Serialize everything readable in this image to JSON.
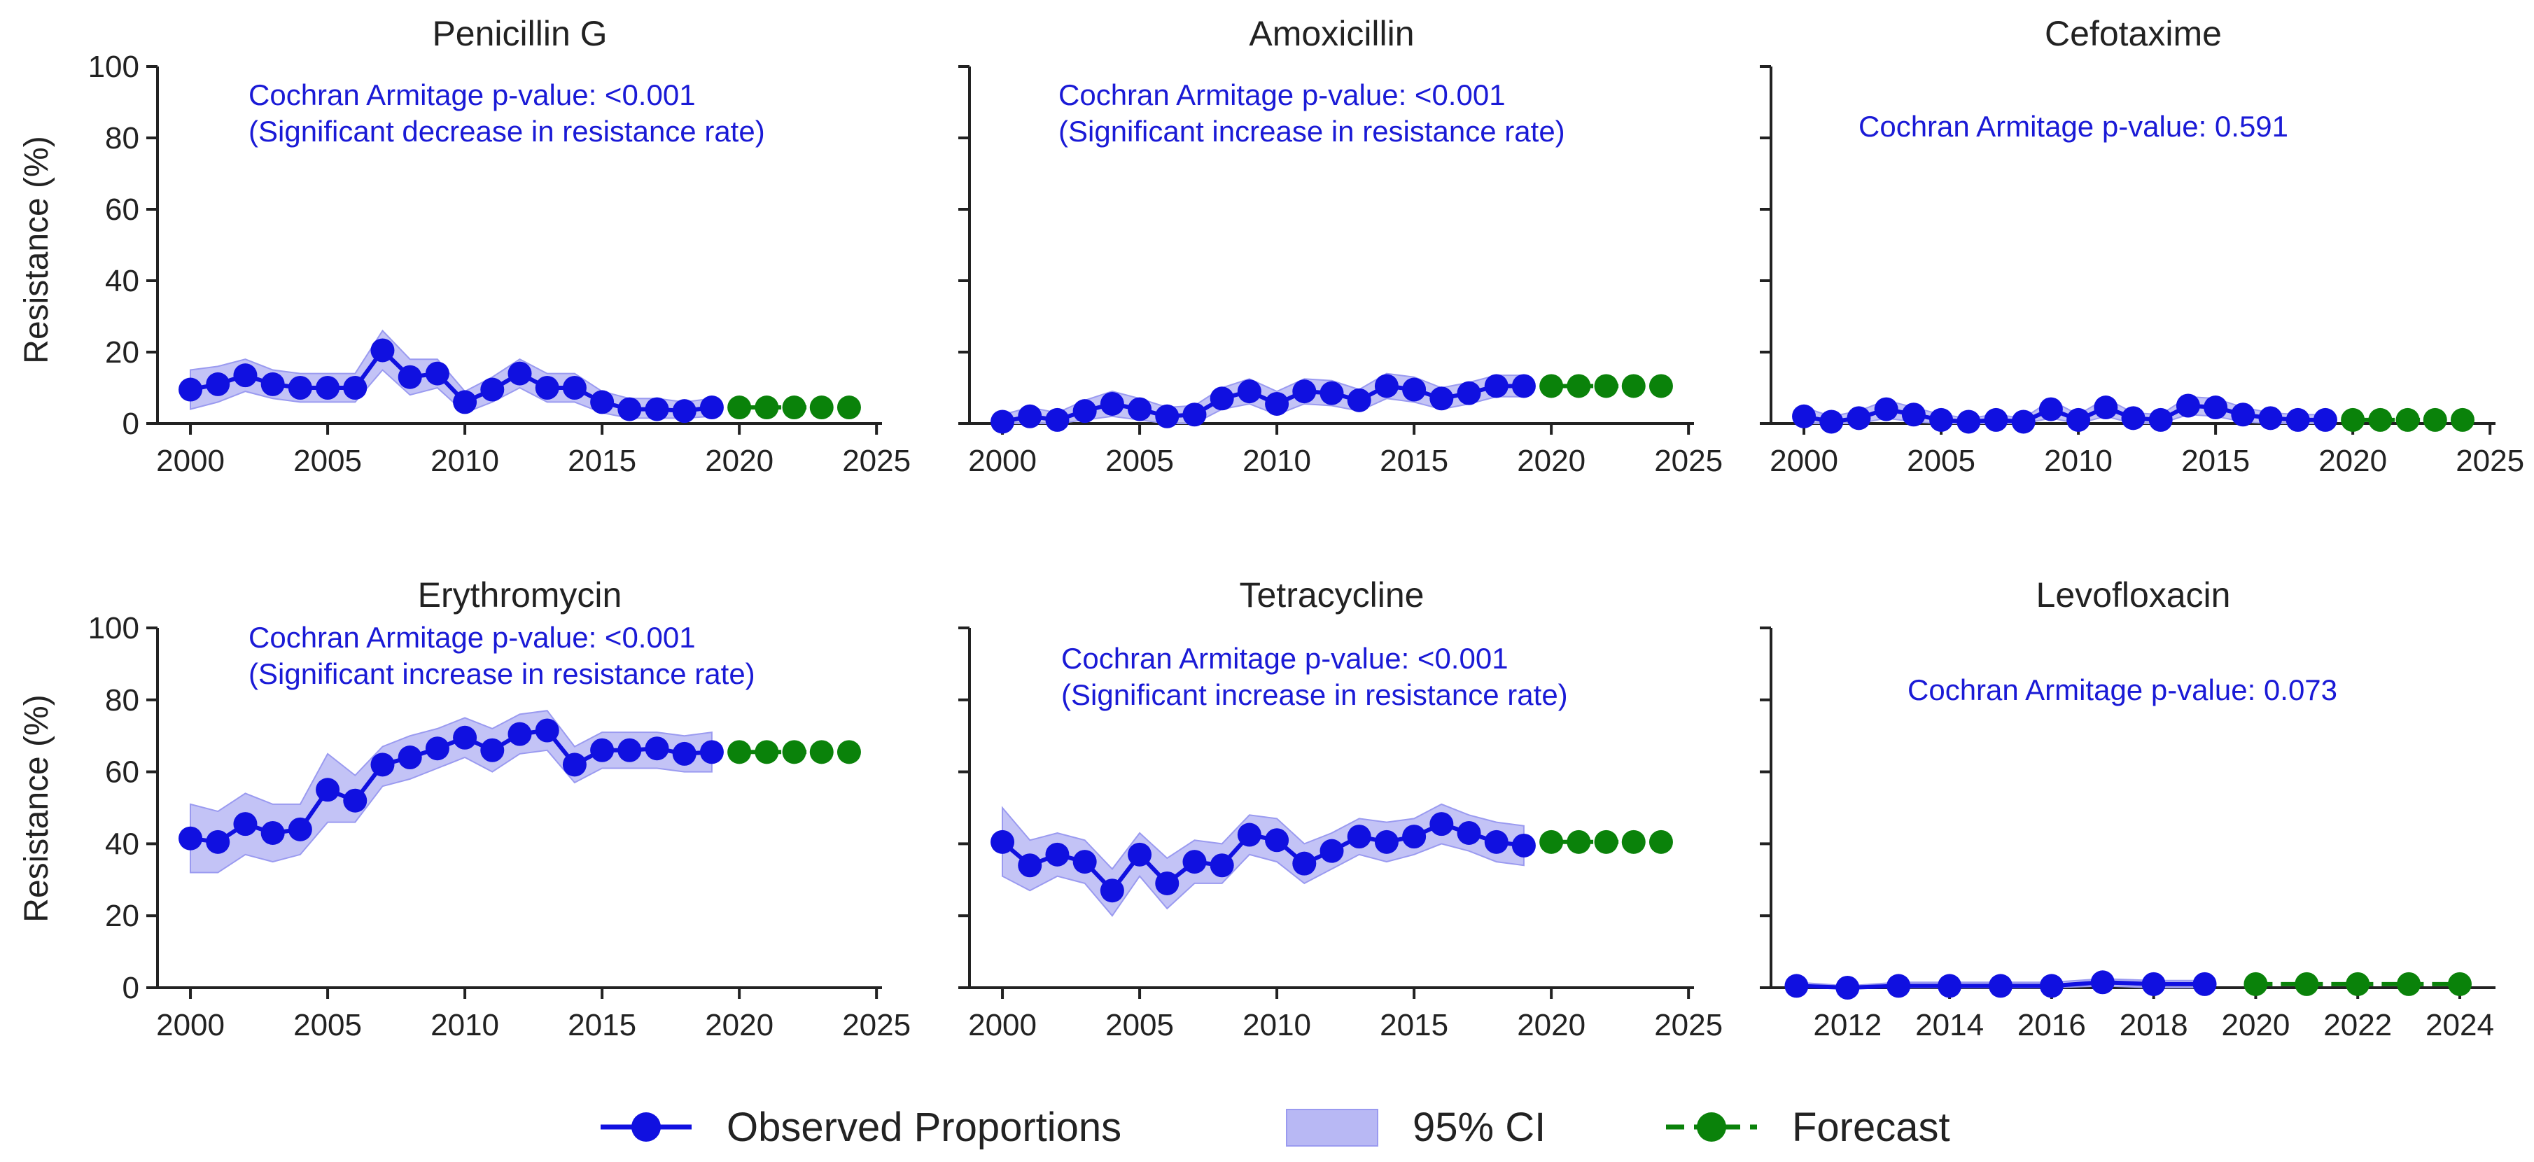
{
  "figure": {
    "ylabel": "Resistance (%)",
    "colors": {
      "observed": "#1010e0",
      "ci_fill": "#b8b8f4",
      "ci_edge": "#9a9af0",
      "forecast": "#0a820a",
      "annotation": "#1a1ad6",
      "axis": "#222222"
    }
  },
  "legend": [
    {
      "label": "Observed Proportions"
    },
    {
      "label": "95% CI"
    },
    {
      "label": "Forecast"
    }
  ],
  "chart_data": [
    {
      "type": "line",
      "title": "Penicillin G",
      "xlabel": "",
      "ylabel": "Resistance (%)",
      "xlim": [
        1998.8,
        2025.2
      ],
      "ylim": [
        0,
        100
      ],
      "xticks": [
        2000,
        2005,
        2010,
        2015,
        2020,
        2025
      ],
      "yticks": [
        0,
        20,
        40,
        60,
        80,
        100
      ],
      "annotation": [
        "Cochran Armitage p-value: <0.001",
        "(Significant decrease in resistance rate)"
      ],
      "series": [
        {
          "name": "Observed Proportions",
          "x": [
            2000,
            2001,
            2002,
            2003,
            2004,
            2005,
            2006,
            2007,
            2008,
            2009,
            2010,
            2011,
            2012,
            2013,
            2014,
            2015,
            2016,
            2017,
            2018,
            2019
          ],
          "values": [
            9.5,
            11,
            13.5,
            11,
            10,
            10,
            10,
            20.5,
            13,
            14,
            6,
            9.5,
            14,
            10,
            10,
            6,
            4,
            4,
            3.5,
            4.5
          ]
        },
        {
          "name": "95% CI",
          "x": [
            2000,
            2001,
            2002,
            2003,
            2004,
            2005,
            2006,
            2007,
            2008,
            2009,
            2010,
            2011,
            2012,
            2013,
            2014,
            2015,
            2016,
            2017,
            2018,
            2019
          ],
          "lower": [
            4,
            6,
            9,
            7,
            6,
            6,
            6,
            15,
            8,
            10,
            3,
            6,
            10,
            6,
            6,
            3,
            1.5,
            1.5,
            1.5,
            2
          ],
          "upper": [
            15,
            16,
            18,
            15,
            14,
            14,
            14,
            26,
            18,
            18,
            9,
            13,
            18,
            14,
            14,
            9,
            7,
            7,
            6,
            7
          ]
        },
        {
          "name": "Forecast",
          "x": [
            2020,
            2021,
            2022,
            2023,
            2024
          ],
          "values": [
            4.5,
            4.5,
            4.5,
            4.5,
            4.5
          ]
        }
      ]
    },
    {
      "type": "line",
      "title": "Amoxicillin",
      "xlabel": "",
      "ylabel": "",
      "xlim": [
        1998.8,
        2025.2
      ],
      "ylim": [
        0,
        100
      ],
      "xticks": [
        2000,
        2005,
        2010,
        2015,
        2020,
        2025
      ],
      "yticks": [
        0,
        20,
        40,
        60,
        80,
        100
      ],
      "annotation": [
        "Cochran Armitage p-value: <0.001",
        "(Significant increase in resistance rate)"
      ],
      "series": [
        {
          "name": "Observed Proportions",
          "x": [
            2000,
            2001,
            2002,
            2003,
            2004,
            2005,
            2006,
            2007,
            2008,
            2009,
            2010,
            2011,
            2012,
            2013,
            2014,
            2015,
            2016,
            2017,
            2018,
            2019
          ],
          "values": [
            0.5,
            2,
            1,
            3.5,
            5.5,
            4,
            2,
            2.5,
            7,
            9,
            5.5,
            9,
            8.5,
            6.5,
            10.5,
            9.5,
            7,
            8.5,
            10.5,
            10.5
          ]
        },
        {
          "name": "95% CI",
          "x": [
            2000,
            2001,
            2002,
            2003,
            2004,
            2005,
            2006,
            2007,
            2008,
            2009,
            2010,
            2011,
            2012,
            2013,
            2014,
            2015,
            2016,
            2017,
            2018,
            2019
          ],
          "lower": [
            0,
            0,
            0,
            1,
            2,
            1,
            0,
            0,
            4,
            5.5,
            2.5,
            5.5,
            5,
            3.5,
            7,
            6,
            4,
            5.5,
            7.5,
            7.5
          ],
          "upper": [
            2.5,
            4.5,
            3,
            6.5,
            9,
            7,
            4.5,
            5,
            10,
            12.5,
            9,
            12.5,
            12,
            9.5,
            14,
            13,
            10,
            11.5,
            13.5,
            13.5
          ]
        },
        {
          "name": "Forecast",
          "x": [
            2020,
            2021,
            2022,
            2023,
            2024
          ],
          "values": [
            10.5,
            10.5,
            10.5,
            10.5,
            10.5
          ]
        }
      ]
    },
    {
      "type": "line",
      "title": "Cefotaxime",
      "xlabel": "",
      "ylabel": "",
      "xlim": [
        1998.8,
        2025.2
      ],
      "ylim": [
        0,
        100
      ],
      "xticks": [
        2000,
        2005,
        2010,
        2015,
        2020,
        2025
      ],
      "yticks": [
        0,
        20,
        40,
        60,
        80,
        100
      ],
      "annotation": [
        "Cochran Armitage p-value: 0.591"
      ],
      "series": [
        {
          "name": "Observed Proportions",
          "x": [
            2000,
            2001,
            2002,
            2003,
            2004,
            2005,
            2006,
            2007,
            2008,
            2009,
            2010,
            2011,
            2012,
            2013,
            2014,
            2015,
            2016,
            2017,
            2018,
            2019
          ],
          "values": [
            2,
            0.5,
            1.5,
            4,
            2.5,
            1,
            0.5,
            1,
            0.5,
            4,
            1,
            4.5,
            1.5,
            1,
            5,
            4.5,
            2.5,
            1.5,
            1,
            1
          ]
        },
        {
          "name": "95% CI",
          "x": [
            2000,
            2001,
            2002,
            2003,
            2004,
            2005,
            2006,
            2007,
            2008,
            2009,
            2010,
            2011,
            2012,
            2013,
            2014,
            2015,
            2016,
            2017,
            2018,
            2019
          ],
          "lower": [
            0,
            0,
            0,
            1.5,
            0.5,
            0,
            0,
            0,
            0,
            1.5,
            0,
            2,
            0,
            0,
            2.5,
            2,
            0.5,
            0,
            0,
            0
          ],
          "upper": [
            4.5,
            2,
            3.5,
            6.5,
            4.5,
            2.5,
            1.5,
            2.5,
            1.5,
            6.5,
            2.5,
            7,
            3,
            2.5,
            7.5,
            7,
            4.5,
            3,
            2.5,
            2.5
          ]
        },
        {
          "name": "Forecast",
          "x": [
            2020,
            2021,
            2022,
            2023,
            2024
          ],
          "values": [
            1,
            1,
            1,
            1,
            1
          ]
        }
      ]
    },
    {
      "type": "line",
      "title": "Erythromycin",
      "xlabel": "",
      "ylabel": "Resistance (%)",
      "xlim": [
        1998.8,
        2025.2
      ],
      "ylim": [
        0,
        100
      ],
      "xticks": [
        2000,
        2005,
        2010,
        2015,
        2020,
        2025
      ],
      "yticks": [
        0,
        20,
        40,
        60,
        80,
        100
      ],
      "annotation": [
        "Cochran Armitage p-value: <0.001",
        "(Significant increase in resistance rate)"
      ],
      "series": [
        {
          "name": "Observed Proportions",
          "x": [
            2000,
            2001,
            2002,
            2003,
            2004,
            2005,
            2006,
            2007,
            2008,
            2009,
            2010,
            2011,
            2012,
            2013,
            2014,
            2015,
            2016,
            2017,
            2018,
            2019
          ],
          "values": [
            41.5,
            40.5,
            45.5,
            43,
            44,
            55,
            52,
            62,
            64,
            66.5,
            69.5,
            66,
            70.5,
            71.5,
            62,
            66,
            66,
            66.5,
            65,
            65.5
          ]
        },
        {
          "name": "95% CI",
          "x": [
            2000,
            2001,
            2002,
            2003,
            2004,
            2005,
            2006,
            2007,
            2008,
            2009,
            2010,
            2011,
            2012,
            2013,
            2014,
            2015,
            2016,
            2017,
            2018,
            2019
          ],
          "lower": [
            32,
            32,
            37,
            35,
            37,
            46,
            46,
            56,
            58,
            61,
            64,
            60,
            65,
            66,
            57,
            61,
            61,
            61,
            60,
            60
          ],
          "upper": [
            51,
            49,
            54,
            51,
            51,
            65,
            59,
            67,
            70,
            72,
            75,
            72,
            76,
            77,
            67,
            71,
            71,
            71,
            70,
            71
          ]
        },
        {
          "name": "Forecast",
          "x": [
            2020,
            2021,
            2022,
            2023,
            2024
          ],
          "values": [
            65.5,
            65.5,
            65.5,
            65.5,
            65.5
          ]
        }
      ]
    },
    {
      "type": "line",
      "title": "Tetracycline",
      "xlabel": "",
      "ylabel": "",
      "xlim": [
        1998.8,
        2025.2
      ],
      "ylim": [
        0,
        100
      ],
      "xticks": [
        2000,
        2005,
        2010,
        2015,
        2020,
        2025
      ],
      "yticks": [
        0,
        20,
        40,
        60,
        80,
        100
      ],
      "annotation": [
        "Cochran Armitage p-value: <0.001",
        "(Significant increase in resistance rate)"
      ],
      "series": [
        {
          "name": "Observed Proportions",
          "x": [
            2000,
            2001,
            2002,
            2003,
            2004,
            2005,
            2006,
            2007,
            2008,
            2009,
            2010,
            2011,
            2012,
            2013,
            2014,
            2015,
            2016,
            2017,
            2018,
            2019
          ],
          "values": [
            40.5,
            34,
            37,
            35,
            27,
            37,
            29,
            35,
            34,
            42.5,
            41,
            34.5,
            38,
            42,
            40.5,
            42,
            45.5,
            43,
            40.5,
            39.5
          ]
        },
        {
          "name": "95% CI",
          "x": [
            2000,
            2001,
            2002,
            2003,
            2004,
            2005,
            2006,
            2007,
            2008,
            2009,
            2010,
            2011,
            2012,
            2013,
            2014,
            2015,
            2016,
            2017,
            2018,
            2019
          ],
          "lower": [
            31,
            27,
            31,
            29,
            20,
            31,
            22,
            29,
            29,
            37,
            35,
            29,
            33,
            37,
            35,
            37,
            40,
            38,
            35,
            34
          ],
          "upper": [
            50,
            41,
            43,
            41,
            33,
            43,
            36,
            41,
            40,
            48,
            47,
            40,
            43,
            47,
            46,
            47,
            51,
            48,
            46,
            45
          ]
        },
        {
          "name": "Forecast",
          "x": [
            2020,
            2021,
            2022,
            2023,
            2024
          ],
          "values": [
            40.5,
            40.5,
            40.5,
            40.5,
            40.5
          ]
        }
      ]
    },
    {
      "type": "line",
      "title": "Levofloxacin",
      "xlabel": "",
      "ylabel": "",
      "xlim": [
        2010.5,
        2024.7
      ],
      "ylim": [
        0,
        100
      ],
      "xticks": [
        2012,
        2014,
        2016,
        2018,
        2020,
        2022,
        2024
      ],
      "yticks": [
        0,
        20,
        40,
        60,
        80,
        100
      ],
      "annotation": [
        "Cochran Armitage p-value: 0.073"
      ],
      "series": [
        {
          "name": "Observed Proportions",
          "x": [
            2011,
            2012,
            2013,
            2014,
            2015,
            2016,
            2017,
            2018,
            2019
          ],
          "values": [
            0.5,
            0,
            0.5,
            0.5,
            0.5,
            0.5,
            1.5,
            1,
            1
          ]
        },
        {
          "name": "95% CI",
          "x": [
            2011,
            2012,
            2013,
            2014,
            2015,
            2016,
            2017,
            2018,
            2019
          ],
          "lower": [
            0,
            0,
            0,
            0,
            0,
            0,
            0.5,
            0,
            0
          ],
          "upper": [
            1.5,
            0.5,
            1.5,
            1.5,
            1.5,
            1.5,
            2.5,
            2,
            2
          ]
        },
        {
          "name": "Forecast",
          "x": [
            2020,
            2021,
            2022,
            2023,
            2024
          ],
          "values": [
            1,
            1,
            1,
            1,
            1
          ]
        }
      ]
    }
  ]
}
